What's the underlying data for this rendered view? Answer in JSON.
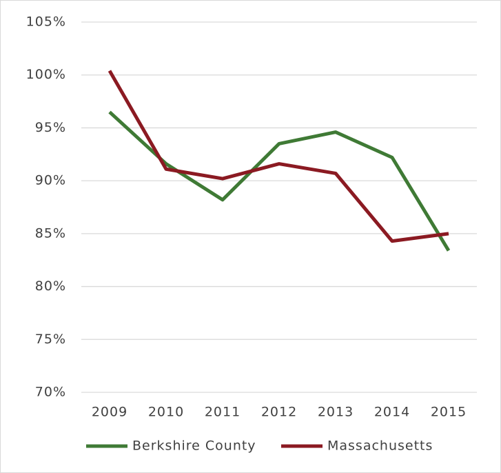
{
  "chart_data": {
    "type": "line",
    "categories": [
      "2009",
      "2010",
      "2011",
      "2012",
      "2013",
      "2014",
      "2015"
    ],
    "series": [
      {
        "name": "Berkshire County",
        "color": "#3f7a35",
        "values": [
          96.5,
          91.6,
          88.2,
          93.5,
          94.6,
          92.2,
          83.4
        ]
      },
      {
        "name": "Massachusetts",
        "color": "#8b1a22",
        "values": [
          100.4,
          91.1,
          90.2,
          91.6,
          90.7,
          84.3,
          85.0
        ]
      }
    ],
    "ylim": [
      70,
      105
    ],
    "yticks": [
      {
        "value": 70,
        "label": "70%"
      },
      {
        "value": 75,
        "label": "75%"
      },
      {
        "value": 80,
        "label": "80%"
      },
      {
        "value": 85,
        "label": "85%"
      },
      {
        "value": 90,
        "label": "90%"
      },
      {
        "value": 95,
        "label": "95%"
      },
      {
        "value": 100,
        "label": "100%"
      },
      {
        "value": 105,
        "label": "105%"
      }
    ],
    "grid": true,
    "legend": "bottom"
  }
}
